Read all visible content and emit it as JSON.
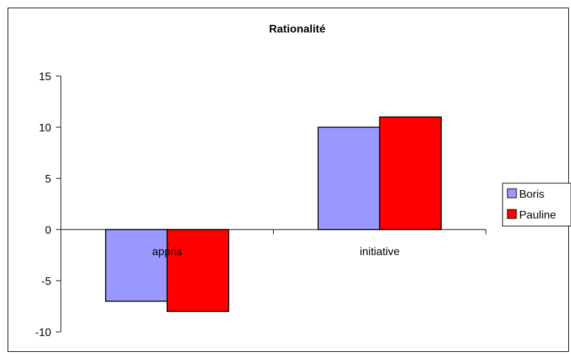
{
  "chart_data": {
    "type": "bar",
    "title": "Rationalité",
    "xlabel": "",
    "ylabel": "",
    "categories": [
      "appris",
      "initiative"
    ],
    "series": [
      {
        "name": "Boris",
        "values": [
          -7,
          10
        ],
        "color": "#9999ff"
      },
      {
        "name": "Pauline",
        "values": [
          -8,
          11
        ],
        "color": "#ff0000"
      }
    ],
    "ylim": [
      -10,
      15
    ],
    "yticks": [
      15,
      10,
      5,
      0,
      -5,
      -10
    ],
    "ytick_labels": [
      "15",
      "10",
      "5",
      "0",
      "-5",
      "-10"
    ],
    "grid": false,
    "legend_position": "right"
  }
}
